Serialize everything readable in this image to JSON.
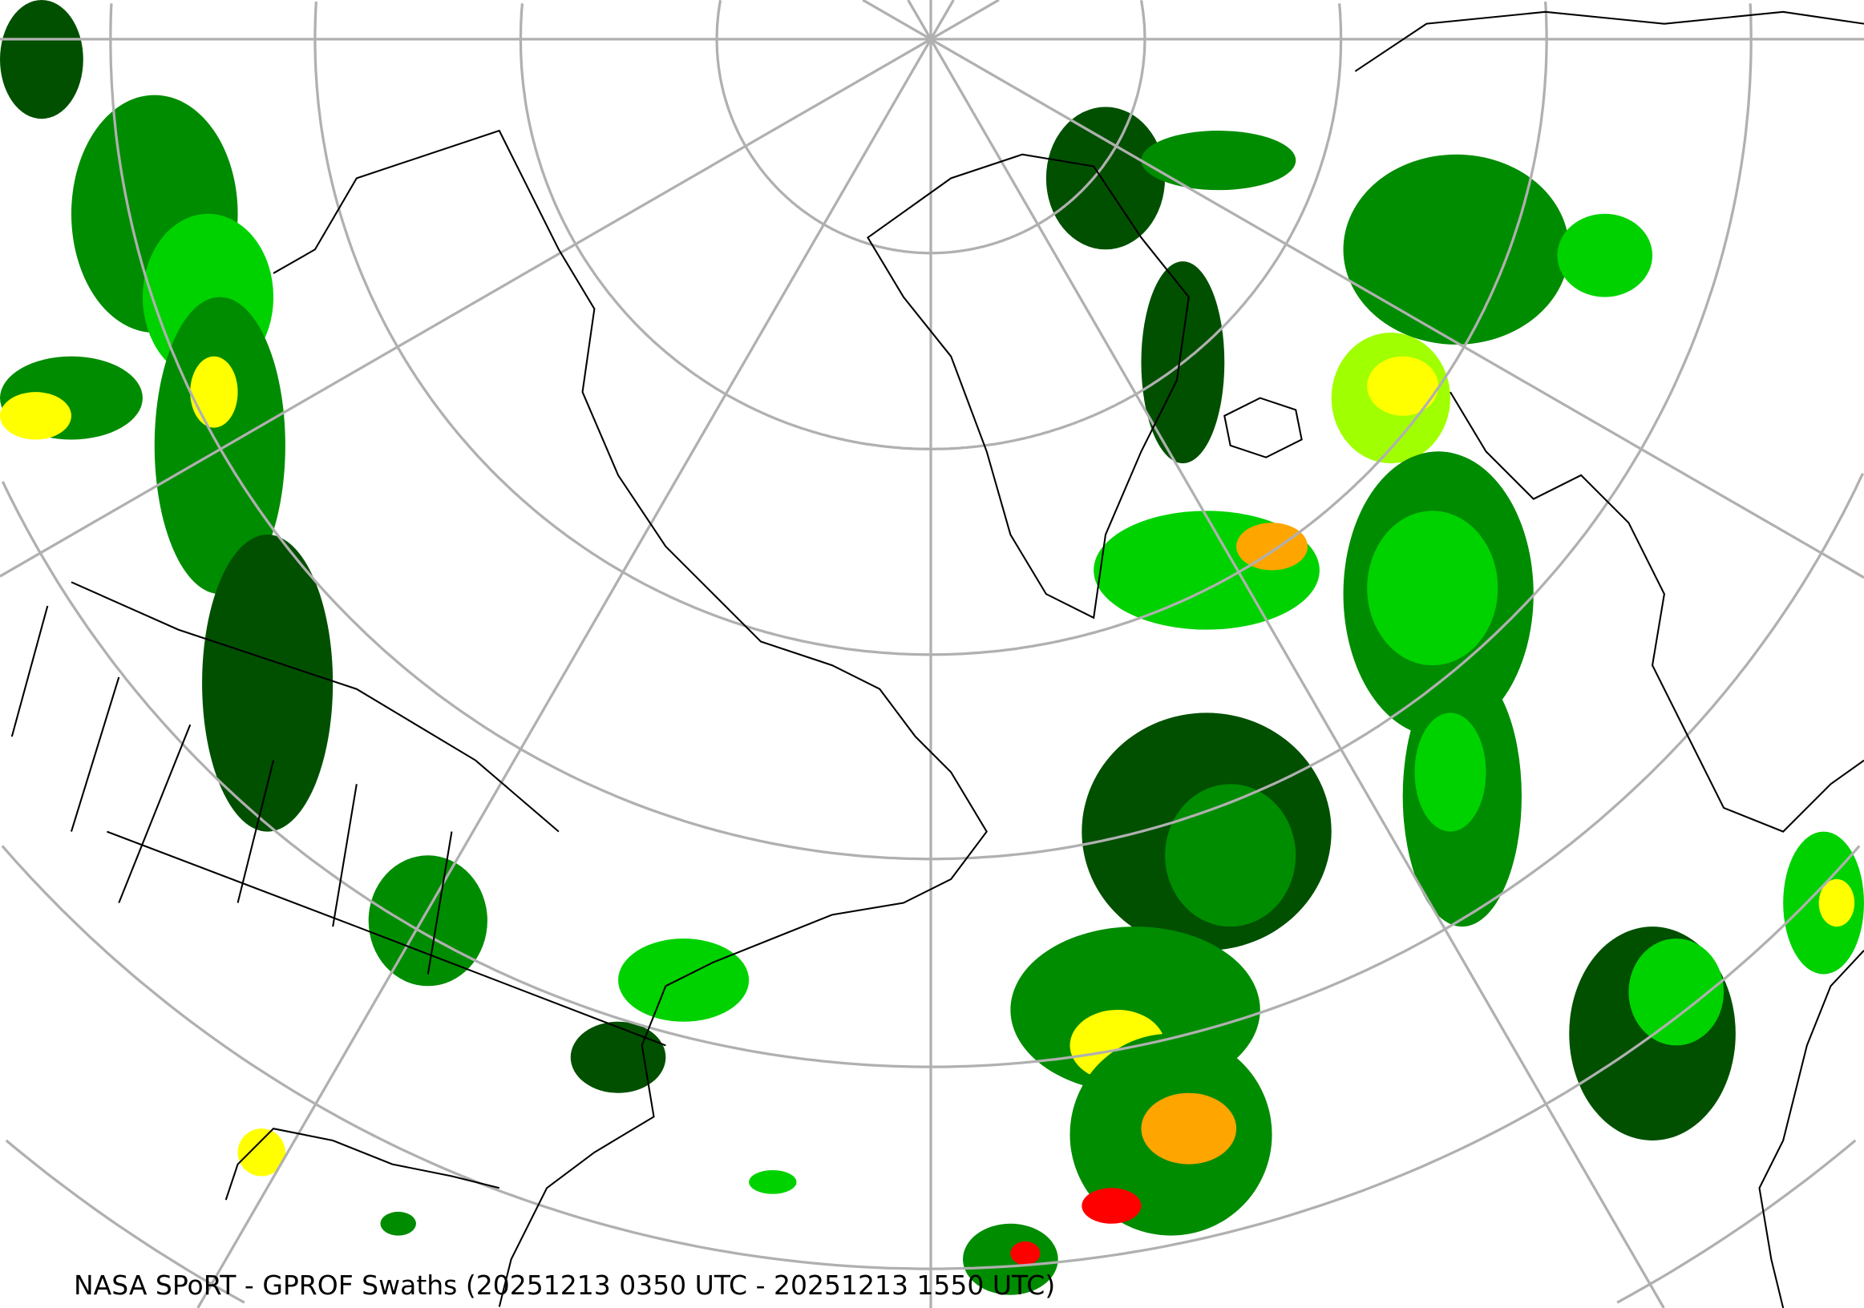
{
  "map": {
    "title": "NASA SPoRT - GPROF Swaths (20251213 0350 UTC - 20251213 1550 UTC)",
    "projection": "north polar stereographic",
    "graticule_color": "#b0b0b0",
    "coastline_color": "#000000",
    "precip_colors": [
      "#005000",
      "#008c00",
      "#00d200",
      "#a0ff00",
      "#ffff00",
      "#ffa500",
      "#ff0000"
    ]
  }
}
